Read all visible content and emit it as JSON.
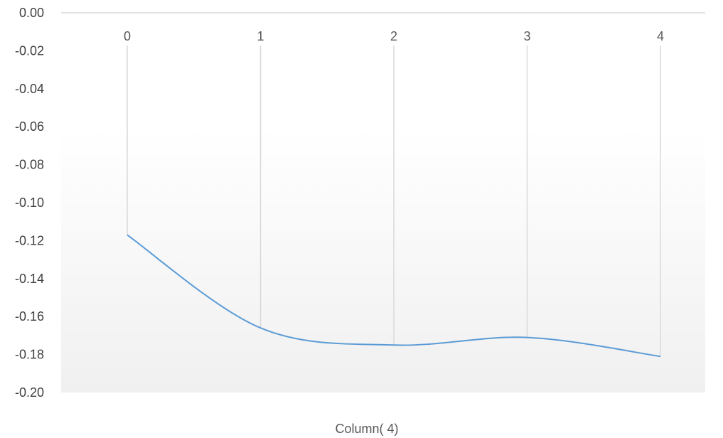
{
  "chart_data": {
    "type": "line",
    "title": "",
    "xlabel": "Column( 4)",
    "ylabel": "",
    "x": [
      0,
      1,
      2,
      3,
      4
    ],
    "x_tick_labels": [
      "0",
      "1",
      "2",
      "3",
      "4"
    ],
    "series": [
      {
        "name": "",
        "values": [
          -0.117,
          -0.166,
          -0.175,
          -0.171,
          -0.181
        ],
        "color": "#5b9bd5"
      }
    ],
    "ylim": [
      -0.2,
      0.0
    ],
    "y_tick_labels": [
      "0.00",
      "-0.02",
      "-0.04",
      "-0.06",
      "-0.08",
      "-0.10",
      "-0.12",
      "-0.14",
      "-0.16",
      "-0.18",
      "-0.20"
    ],
    "y_ticks": [
      0.0,
      -0.02,
      -0.04,
      -0.06,
      -0.08,
      -0.1,
      -0.12,
      -0.14,
      -0.16,
      -0.18,
      -0.2
    ],
    "smooth": true,
    "drop_lines": true,
    "x_axis_position": "top",
    "grid": false,
    "plot_background": "gradient-white-to-light-gray",
    "line_color": "#5b9bd5",
    "drop_line_color": "#d9d9d9",
    "axis_color": "#d9d9d9"
  }
}
